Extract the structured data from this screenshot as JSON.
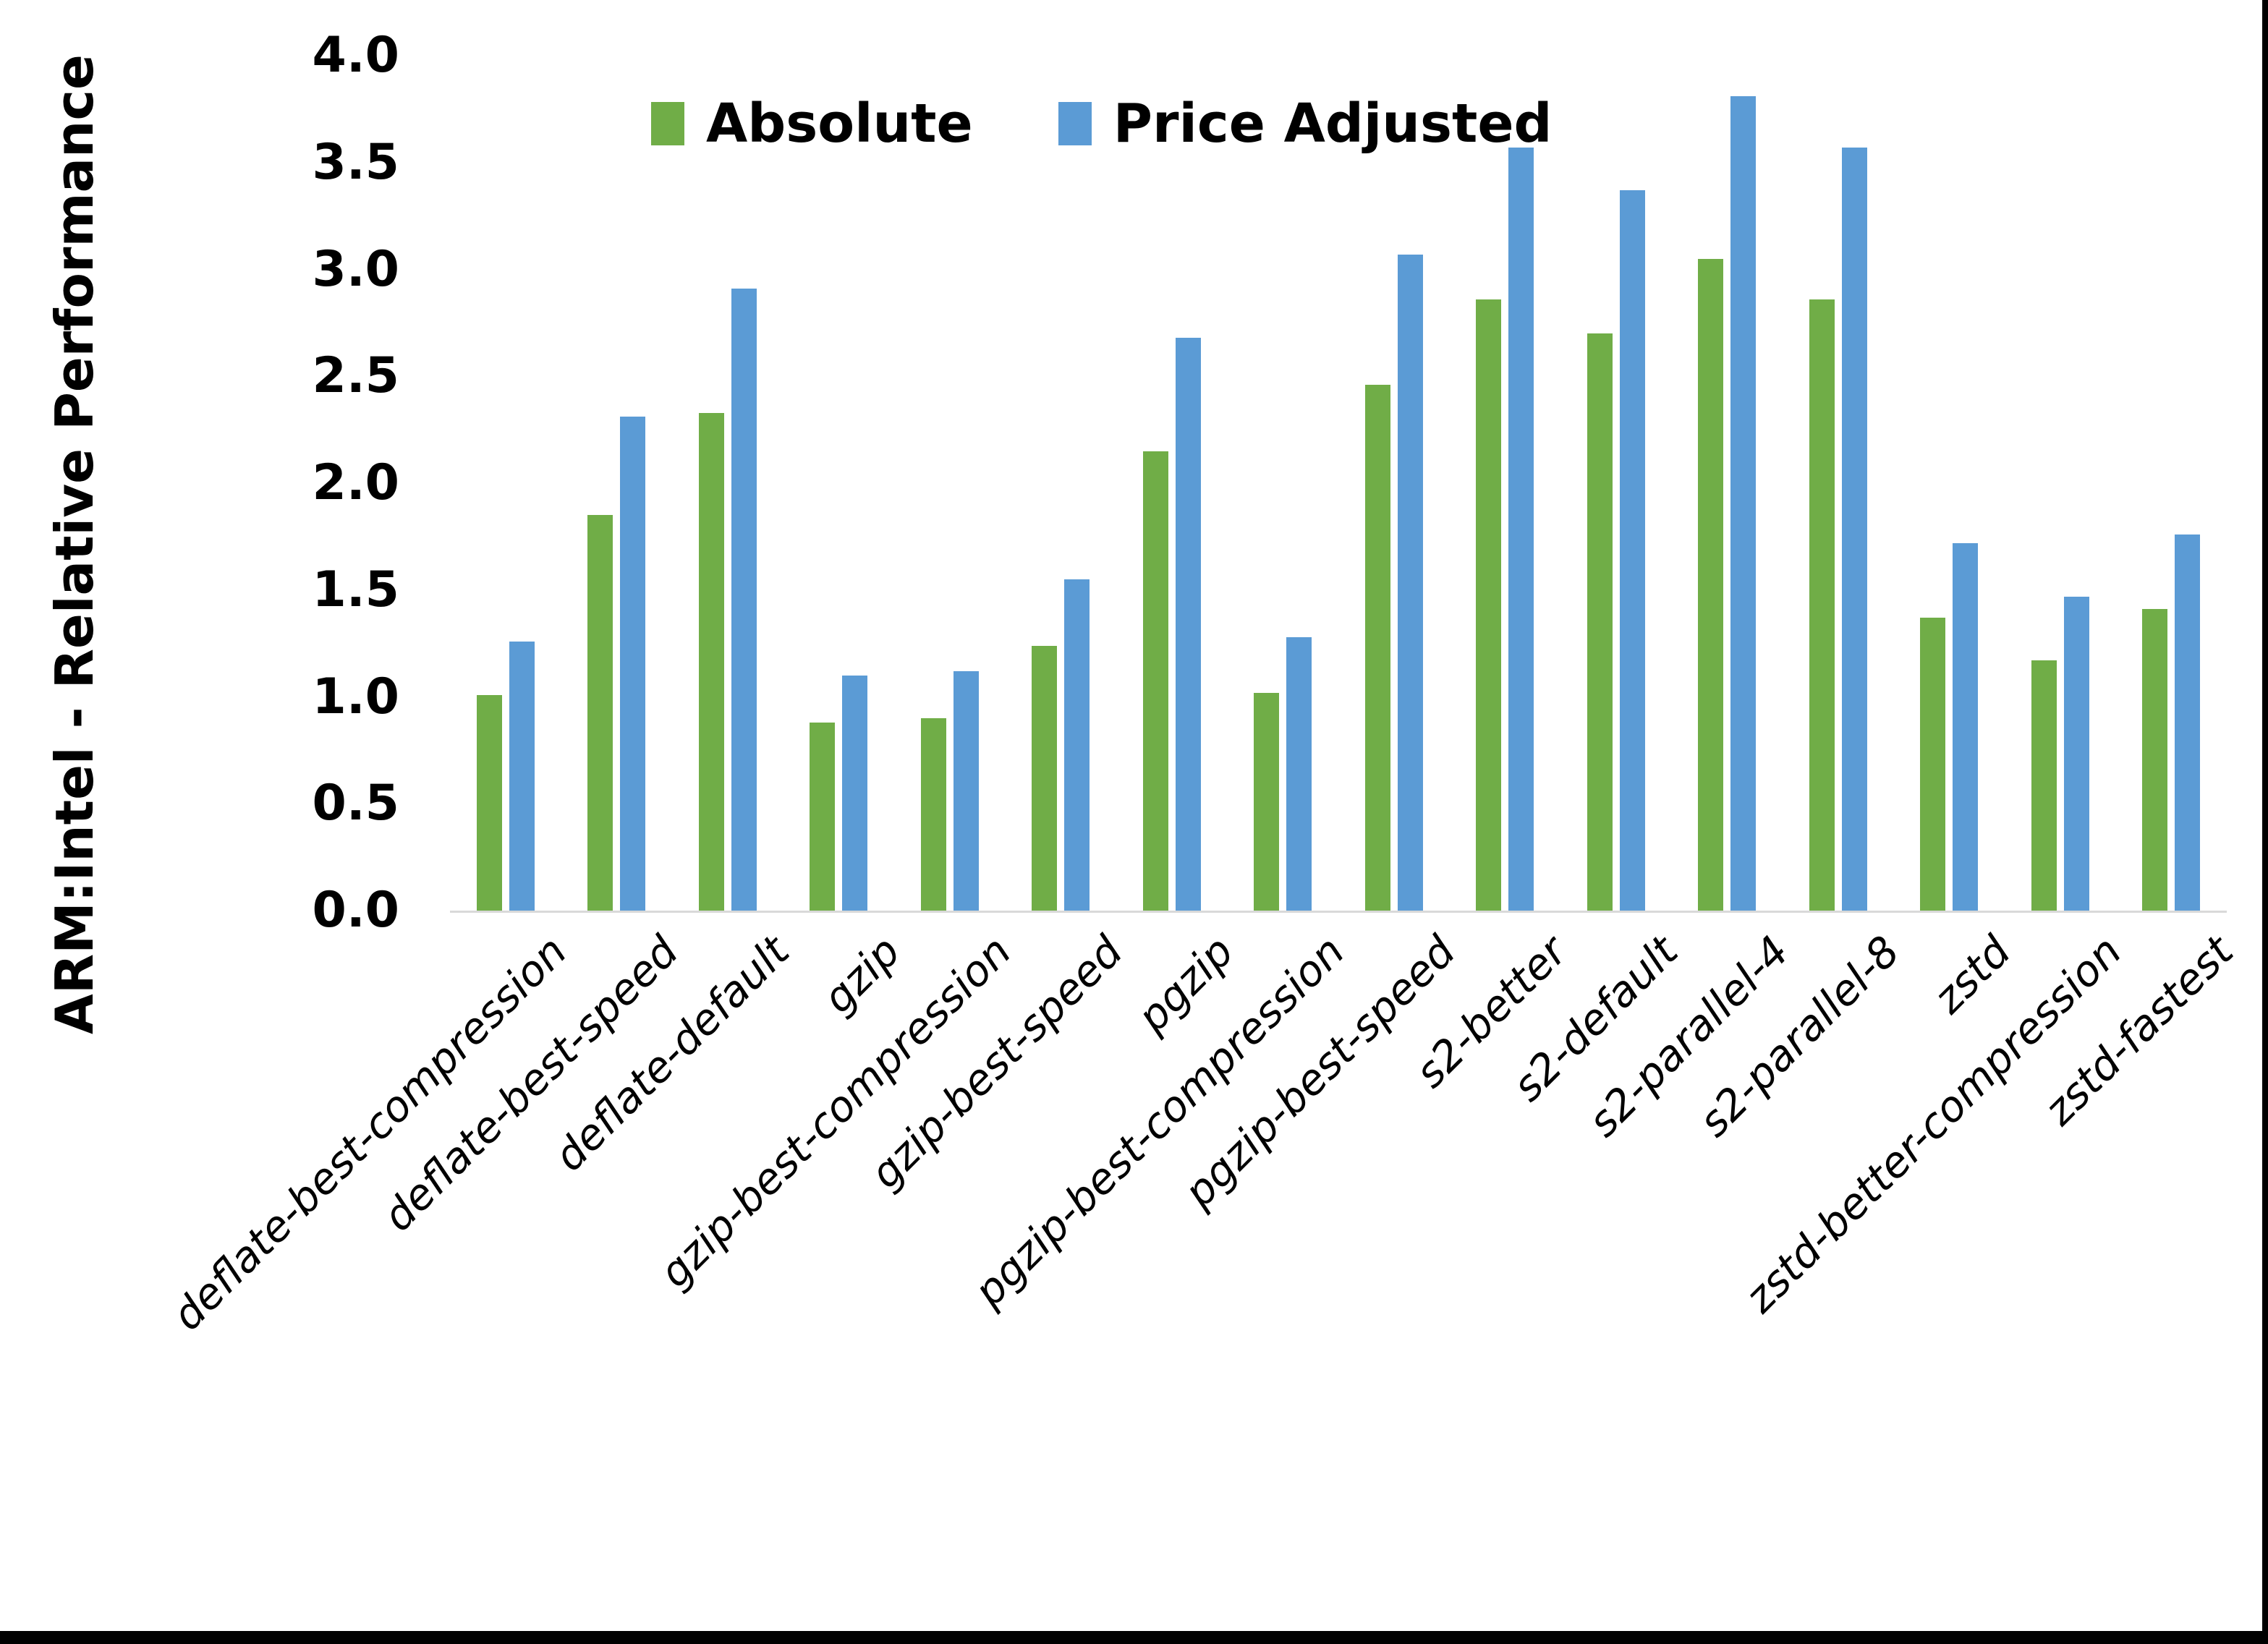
{
  "chart_data": {
    "type": "bar",
    "title": "",
    "xlabel": "",
    "ylabel": "ARM:Intel - Relative Performance",
    "ylim": [
      0,
      4
    ],
    "y_ticks": [
      "4.0",
      "3.5",
      "3.0",
      "2.5",
      "2.0",
      "1.5",
      "1.0",
      "0.5",
      "0.0"
    ],
    "grid": false,
    "legend_position": "top-center",
    "axis_line_color": "#d9d9d9",
    "background_color": "#ffffff",
    "categories": [
      "deflate-best-compression",
      "deflate-best-speed",
      "deflate-default",
      "gzip",
      "gzip-best-compression",
      "gzip-best-speed",
      "pgzip",
      "pgzip-best-compression",
      "pgzip-best-speed",
      "s2-better",
      "s2-default",
      "s2-parallel-4",
      "s2-parallel-8",
      "zstd",
      "zstd-better-compression",
      "zstd-fastest"
    ],
    "series": [
      {
        "name": "Absolute",
        "color": "#70AD47",
        "values": [
          1.01,
          1.85,
          2.33,
          0.88,
          0.9,
          1.24,
          2.15,
          1.02,
          2.46,
          2.86,
          2.7,
          3.05,
          2.86,
          1.37,
          1.17,
          1.41
        ]
      },
      {
        "name": "Price Adjusted",
        "color": "#5B9BD5",
        "values": [
          1.26,
          2.31,
          2.91,
          1.1,
          1.12,
          1.55,
          2.68,
          1.28,
          3.07,
          3.57,
          3.37,
          3.81,
          3.57,
          1.72,
          1.47,
          1.76
        ]
      }
    ]
  }
}
